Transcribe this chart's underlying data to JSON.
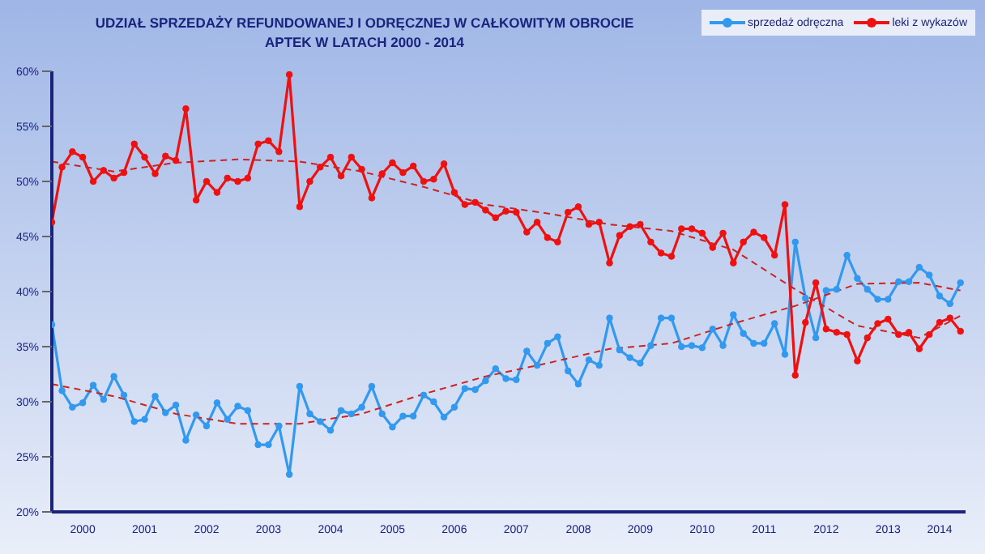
{
  "chart_data": {
    "type": "line",
    "title": "UDZIAŁ SPRZEDAŻY REFUNDOWANEJ I ODRĘCZNEJ W CAŁKOWITYM OBROCIE\nAPTEK W LATACH 2000 - 2014",
    "x": [
      "2000-01",
      "2000-03",
      "2000-05",
      "2000-07",
      "2000-09",
      "2000-11",
      "2001-01",
      "2001-03",
      "2001-05",
      "2001-07",
      "2001-09",
      "2001-11",
      "2002-01",
      "2002-03",
      "2002-05",
      "2002-07",
      "2002-09",
      "2002-11",
      "2003-01",
      "2003-03",
      "2003-05",
      "2003-07",
      "2003-09",
      "2003-11",
      "2004-01",
      "2004-03",
      "2004-05",
      "2004-07",
      "2004-09",
      "2004-11",
      "2005-01",
      "2005-03",
      "2005-05",
      "2005-07",
      "2005-09",
      "2005-11",
      "2006-01",
      "2006-03",
      "2006-05",
      "2006-07",
      "2006-09",
      "2006-11",
      "2007-01",
      "2007-03",
      "2007-05",
      "2007-07",
      "2007-09",
      "2007-11",
      "2008-01",
      "2008-03",
      "2008-05",
      "2008-07",
      "2008-09",
      "2008-11",
      "2009-01",
      "2009-03",
      "2009-05",
      "2009-07",
      "2009-09",
      "2009-11",
      "2010-01",
      "2010-03",
      "2010-05",
      "2010-07",
      "2010-09",
      "2010-11",
      "2011-01",
      "2011-03",
      "2011-05",
      "2011-07",
      "2011-09",
      "2011-11",
      "2012-01",
      "2012-03",
      "2012-05",
      "2012-07",
      "2012-09",
      "2012-11",
      "2013-01",
      "2013-03",
      "2013-05",
      "2013-07",
      "2013-09",
      "2013-11",
      "2014-01",
      "2014-03",
      "2014-05",
      "2014-07",
      "2014-09"
    ],
    "series": [
      {
        "name": "sprzedaż odręczna",
        "color": "#3399ee",
        "values": [
          37.0,
          31.0,
          29.5,
          29.9,
          31.5,
          30.2,
          32.3,
          30.6,
          28.2,
          28.4,
          30.5,
          29.0,
          29.7,
          26.5,
          28.8,
          27.8,
          29.9,
          28.4,
          29.6,
          29.2,
          26.1,
          26.1,
          27.8,
          23.4,
          31.4,
          28.9,
          28.2,
          27.4,
          29.2,
          28.9,
          29.5,
          31.4,
          28.9,
          27.7,
          28.7,
          28.7,
          30.6,
          30.0,
          28.6,
          29.5,
          31.2,
          31.1,
          31.9,
          33.0,
          32.1,
          32.0,
          34.6,
          33.3,
          35.3,
          35.9,
          32.8,
          31.6,
          33.8,
          33.3,
          37.6,
          34.7,
          34.0,
          33.5,
          35.1,
          37.6,
          37.6,
          35.0,
          35.1,
          34.9,
          36.6,
          35.1,
          37.9,
          36.2,
          35.3,
          35.3,
          37.1,
          34.3,
          44.5,
          39.4,
          35.8,
          40.1,
          40.2,
          43.3,
          41.2,
          40.2,
          39.3,
          39.3,
          40.9,
          40.9,
          42.2,
          41.5,
          39.6,
          38.9,
          40.8
        ]
      },
      {
        "name": "leki z wykazów",
        "color": "#ee1111",
        "values": [
          46.3,
          51.3,
          52.7,
          52.2,
          50.0,
          51.0,
          50.3,
          50.8,
          53.4,
          52.2,
          50.7,
          52.3,
          51.9,
          56.6,
          48.3,
          50.0,
          49.0,
          50.3,
          50.0,
          50.3,
          53.4,
          53.7,
          52.7,
          59.7,
          47.7,
          50.0,
          51.3,
          52.2,
          50.5,
          52.2,
          51.1,
          48.5,
          50.7,
          51.7,
          50.8,
          51.4,
          50.0,
          50.2,
          51.6,
          49.0,
          47.9,
          48.1,
          47.4,
          46.7,
          47.3,
          47.2,
          45.4,
          46.3,
          44.9,
          44.5,
          47.2,
          47.7,
          46.1,
          46.3,
          42.6,
          45.1,
          45.9,
          46.1,
          44.5,
          43.5,
          43.2,
          45.7,
          45.7,
          45.3,
          44.0,
          45.3,
          42.6,
          44.5,
          45.4,
          44.9,
          43.3,
          47.9,
          32.4,
          37.2,
          40.8,
          36.6,
          36.3,
          36.1,
          33.7,
          35.8,
          37.1,
          37.5,
          36.1,
          36.3,
          34.8,
          36.1,
          37.2,
          37.6,
          36.4
        ]
      },
      {
        "type": "line",
        "color": "#cc2222",
        "line_style": "dashed",
        "marker": "none",
        "x": [
          "2000-01",
          "2001-01",
          "2002-01",
          "2003-01",
          "2004-01",
          "2005-01",
          "2006-01",
          "2007-01",
          "2008-01",
          "2009-01",
          "2010-01",
          "2011-01",
          "2012-01",
          "2013-01",
          "2014-01",
          "2014-09"
        ],
        "values": [
          31.6,
          30.5,
          28.9,
          28.0,
          28.0,
          28.9,
          30.7,
          32.3,
          33.5,
          34.8,
          35.3,
          37.1,
          38.7,
          40.7,
          40.8,
          40.1
        ]
      },
      {
        "type": "line",
        "color": "#cc2222",
        "line_style": "dashed",
        "marker": "none",
        "x": [
          "2000-01",
          "2001-01",
          "2002-01",
          "2003-01",
          "2004-01",
          "2005-01",
          "2006-01",
          "2007-01",
          "2008-01",
          "2009-01",
          "2010-01",
          "2011-01",
          "2012-01",
          "2013-01",
          "2014-01",
          "2014-09"
        ],
        "values": [
          51.8,
          50.9,
          51.7,
          52.0,
          51.8,
          50.9,
          49.5,
          47.9,
          47.1,
          46.1,
          45.5,
          43.8,
          40.2,
          36.9,
          35.8,
          37.8
        ]
      }
    ],
    "xlim": [
      "2000-01",
      "2014-10"
    ],
    "xticks": [
      {
        "value": "2000-07",
        "label": "2000"
      },
      {
        "value": "2001-07",
        "label": "2001"
      },
      {
        "value": "2002-07",
        "label": "2002"
      },
      {
        "value": "2003-07",
        "label": "2003"
      },
      {
        "value": "2004-07",
        "label": "2004"
      },
      {
        "value": "2005-07",
        "label": "2005"
      },
      {
        "value": "2006-07",
        "label": "2006"
      },
      {
        "value": "2007-07",
        "label": "2007"
      },
      {
        "value": "2008-07",
        "label": "2008"
      },
      {
        "value": "2009-07",
        "label": "2009"
      },
      {
        "value": "2010-07",
        "label": "2010"
      },
      {
        "value": "2011-07",
        "label": "2011"
      },
      {
        "value": "2012-07",
        "label": "2012"
      },
      {
        "value": "2013-07",
        "label": "2013"
      },
      {
        "value": "2014-05",
        "label": "2014"
      }
    ],
    "ylim": [
      20,
      60
    ],
    "yticks": [
      {
        "value": 20,
        "label": "20%"
      },
      {
        "value": 25,
        "label": "25%"
      },
      {
        "value": 30,
        "label": "30%"
      },
      {
        "value": 35,
        "label": "35%"
      },
      {
        "value": 40,
        "label": "40%"
      },
      {
        "value": 45,
        "label": "45%"
      },
      {
        "value": 50,
        "label": "50%"
      },
      {
        "value": 55,
        "label": "55%"
      },
      {
        "value": 60,
        "label": "60%"
      }
    ],
    "grid": false,
    "legend": "top right",
    "marker": "circle"
  }
}
